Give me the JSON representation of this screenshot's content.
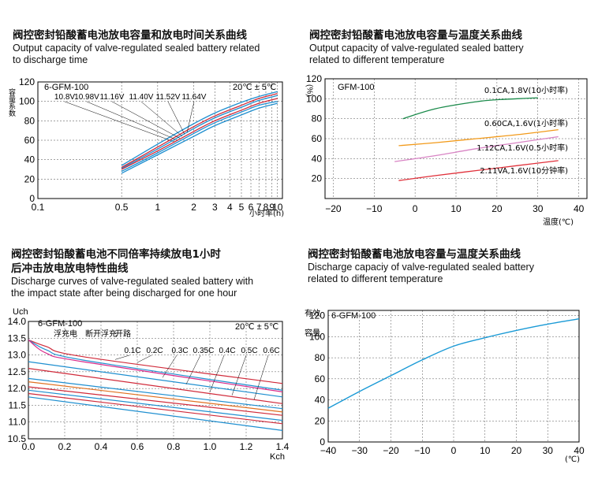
{
  "charts": {
    "tl": {
      "title_cn": "阀控密封铅酸蓄电池放电容量和放电时间关系曲线",
      "title_en_1": "Output  capacity of valve-regulated sealed battery  related",
      "title_en_2": "to discharge time",
      "ylabel": "容量系数",
      "xlabel": "小时率(h)",
      "model": "6-GFM-100",
      "temp": "20℃ ± 5℃",
      "x_ticks": [
        "0.1",
        "0.5",
        "1",
        "2",
        "3",
        "4",
        "5",
        "6",
        "7",
        "8",
        "9",
        "10"
      ],
      "y_ticks": [
        "0",
        "20",
        "40",
        "60",
        "80",
        "100",
        "120"
      ]
    },
    "tr": {
      "title_cn": "阀控密封铅酸蓄电池放电容量与温度关系曲线",
      "title_en_1": "Output capacity of valve-regulated sealed battery",
      "title_en_2": "related to different temperature",
      "ylabel": "(%)",
      "xlabel": "温度(℃)",
      "model": "GFM-100",
      "x_ticks": [
        "−20",
        "−10",
        "0",
        "10",
        "20",
        "30",
        "40"
      ],
      "y_ticks": [
        "20",
        "40",
        "60",
        "80",
        "100",
        "120"
      ]
    },
    "bl": {
      "title_cn_1": "阀控密封铅酸蓄电池不同倍率持续放电1小时",
      "title_cn_2": "后冲击放电放电特性曲线",
      "title_en_1": "Discharge curves of valve-regulated sealed battery with",
      "title_en_2": "the impact state after being discharged for one hour",
      "ylabel": "Uch",
      "xlabel": "Kch",
      "model": "6-GFM-100",
      "temp": "20℃ ± 5℃",
      "labels_states": [
        "浮充电",
        "断开浮充",
        "开路"
      ],
      "x_ticks": [
        "0.0",
        "0.2",
        "0.4",
        "0.6",
        "0.8",
        "1.0",
        "1.2",
        "1.4"
      ],
      "y_ticks": [
        "10.5",
        "11.0",
        "11.5",
        "12.0",
        "12.5",
        "13.0",
        "13.5",
        "14.0"
      ]
    },
    "br": {
      "title_cn": "阀控密封铅酸蓄电池放电容量与温度关系曲线",
      "title_en_1": "Discharge capaciy of valve-regulated sealed battery",
      "title_en_2": "related to different temperature",
      "ylabel": "有效容量",
      "xlabel": "(℃)",
      "model": "6-GFM-100",
      "x_ticks": [
        "−40",
        "−30",
        "−20",
        "−10",
        "0",
        "10",
        "20",
        "30",
        "40"
      ],
      "y_ticks": [
        "0",
        "20",
        "40",
        "60",
        "80",
        "100",
        "120"
      ]
    }
  },
  "chart_data": [
    {
      "type": "line",
      "xscale": "log",
      "xlim": [
        0.1,
        11
      ],
      "ylim": [
        0,
        120
      ],
      "xlabel": "小时率(h)",
      "ylabel": "容量系数",
      "grid": true,
      "series": [
        {
          "name": "10.8V",
          "color": "#1f8fd0",
          "x": [
            0.5,
            1,
            2,
            3,
            5,
            7,
            10
          ],
          "y": [
            34,
            56,
            77,
            88,
            99,
            105,
            110
          ]
        },
        {
          "name": "10.98V",
          "color": "#d02a3a",
          "x": [
            0.5,
            1,
            2,
            3,
            5,
            7,
            10
          ],
          "y": [
            32,
            53,
            74,
            85,
            96,
            103,
            108
          ]
        },
        {
          "name": "11.16V",
          "color": "#1f8fd0",
          "x": [
            0.5,
            1,
            2,
            3,
            5,
            7,
            10
          ],
          "y": [
            31,
            51,
            72,
            83,
            94,
            101,
            106
          ]
        },
        {
          "name": "11.40V",
          "color": "#d02a3a",
          "x": [
            0.5,
            1,
            2,
            3,
            5,
            7,
            10
          ],
          "y": [
            30,
            49,
            69,
            80,
            91,
            98,
            103
          ]
        },
        {
          "name": "11.52V",
          "color": "#1f8fd0",
          "x": [
            0.5,
            1,
            2,
            3,
            5,
            7,
            10
          ],
          "y": [
            28,
            47,
            67,
            78,
            89,
            96,
            100
          ]
        },
        {
          "name": "11.64V",
          "color": "#1f8fd0",
          "x": [
            0.5,
            1,
            2,
            3,
            5,
            7,
            10
          ],
          "y": [
            26,
            45,
            64,
            75,
            86,
            93,
            98
          ]
        }
      ]
    },
    {
      "type": "line",
      "xlim": [
        -22,
        42
      ],
      "ylim": [
        0,
        120
      ],
      "xlabel": "温度(℃)",
      "ylabel": "(%)",
      "grid": true,
      "series": [
        {
          "name": "0.1CA,1.8V(10小时率)",
          "color": "#1a8a4a",
          "x": [
            -3,
            5,
            15,
            20,
            25,
            30
          ],
          "y": [
            80,
            90,
            97,
            99,
            100,
            101
          ]
        },
        {
          "name": "0.60CA,1.6V(1小时率)",
          "color": "#f29a1a",
          "x": [
            -4,
            5,
            15,
            25,
            35
          ],
          "y": [
            53,
            56,
            60,
            64,
            69
          ]
        },
        {
          "name": "1.12CA,1.6V(0.5小时率)",
          "color": "#d884c4",
          "x": [
            -5,
            5,
            15,
            25,
            35
          ],
          "y": [
            37,
            43,
            50,
            56,
            62
          ]
        },
        {
          "name": "2.11VA,1.6V(10分钟率)",
          "color": "#e0303a",
          "x": [
            -4,
            5,
            15,
            25,
            35
          ],
          "y": [
            18,
            23,
            28,
            33,
            38
          ]
        }
      ]
    },
    {
      "type": "line",
      "xlim": [
        0,
        1.4
      ],
      "ylim": [
        10.5,
        14.0
      ],
      "xlabel": "Kch",
      "ylabel": "Uch",
      "grid": true,
      "series": [
        {
          "name": "0.1C",
          "color": "#d02a3a",
          "x": [
            0,
            0.1,
            0.3,
            1.4
          ],
          "y": [
            13.45,
            13.25,
            12.95,
            12.15
          ]
        },
        {
          "name": "0.2C",
          "color": "#1f8fd0",
          "x": [
            0,
            0.1,
            0.3,
            1.4
          ],
          "y": [
            13.45,
            13.15,
            12.85,
            11.95
          ]
        },
        {
          "name": "",
          "color": "#d82a8a",
          "x": [
            0,
            0.1,
            0.3,
            1.4
          ],
          "y": [
            13.45,
            13.05,
            12.8,
            11.9
          ]
        },
        {
          "name": "0.3C",
          "color": "#1f8fd0",
          "x": [
            0,
            1.4
          ],
          "y": [
            12.8,
            11.75
          ]
        },
        {
          "name": "0.35C",
          "color": "#d02a3a",
          "x": [
            0,
            1.4
          ],
          "y": [
            12.6,
            11.55
          ]
        },
        {
          "name": "0.4C",
          "color": "#1f8fd0",
          "x": [
            0,
            1.4
          ],
          "y": [
            12.3,
            11.4
          ]
        },
        {
          "name": "0.5C",
          "color": "#e07020",
          "x": [
            0,
            1.4
          ],
          "y": [
            12.2,
            11.3
          ]
        },
        {
          "name": "0.6C",
          "color": "#d02a3a",
          "x": [
            0,
            1.4
          ],
          "y": [
            12.05,
            11.2
          ]
        },
        {
          "name": "",
          "color": "#1f8fd0",
          "x": [
            0,
            1.4
          ],
          "y": [
            11.95,
            11.05
          ]
        },
        {
          "name": "",
          "color": "#d02a3a",
          "x": [
            0,
            1.4
          ],
          "y": [
            11.85,
            10.95
          ]
        },
        {
          "name": "",
          "color": "#1f8fd0",
          "x": [
            0,
            1.4
          ],
          "y": [
            11.75,
            10.75
          ]
        }
      ]
    },
    {
      "type": "line",
      "xlim": [
        -40,
        40
      ],
      "ylim": [
        0,
        120
      ],
      "xlabel": "(℃)",
      "ylabel": "有效容量",
      "grid": true,
      "series": [
        {
          "name": "6-GFM-100",
          "color": "#1a9ad6",
          "x": [
            -40,
            -30,
            -20,
            -10,
            0,
            10,
            20,
            30,
            40
          ],
          "y": [
            32,
            48,
            63,
            78,
            91,
            99,
            106,
            112,
            117
          ]
        }
      ]
    }
  ]
}
